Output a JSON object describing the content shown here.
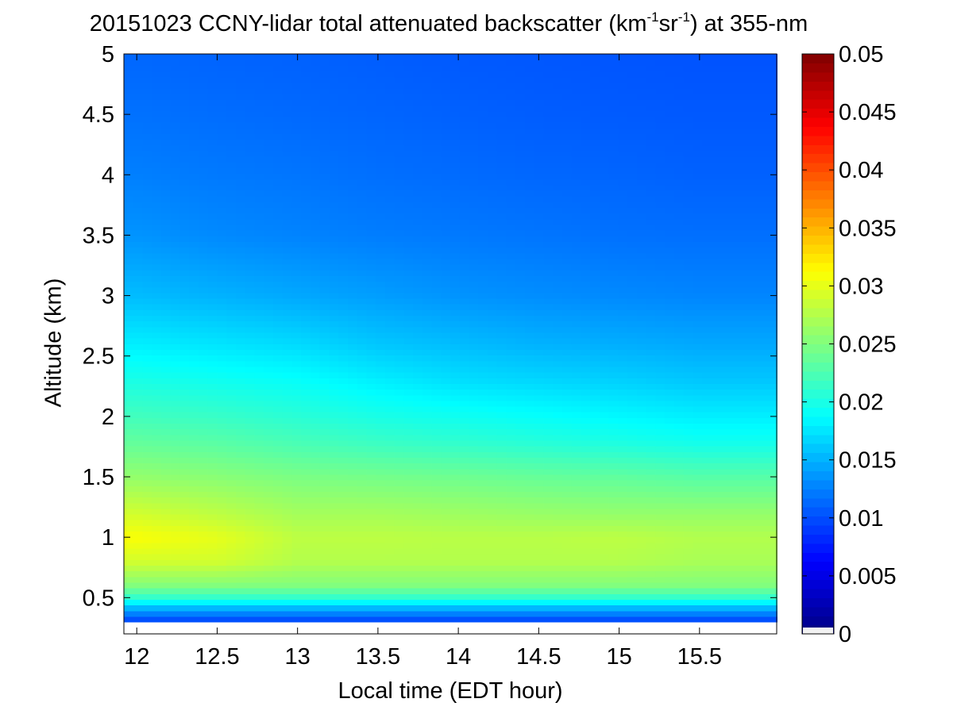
{
  "chart_data": {
    "type": "heatmap",
    "title_prefix": "20151023 CCNY-lidar total attenuated backscatter (km",
    "title_sup1": "-1",
    "title_mid": "sr",
    "title_sup2": "-1",
    "title_suffix": ") at 355-nm",
    "xlabel": "Local time (EDT hour)",
    "ylabel": "Altitude (km)",
    "xlim": [
      11.92,
      15.98
    ],
    "ylim": [
      0.2,
      5.0
    ],
    "x_ticks": [
      12,
      12.5,
      13,
      13.5,
      14,
      14.5,
      15,
      15.5
    ],
    "x_tick_labels": [
      "12",
      "12.5",
      "13",
      "13.5",
      "14",
      "14.5",
      "15",
      "15.5"
    ],
    "y_ticks": [
      0.5,
      1,
      1.5,
      2,
      2.5,
      3,
      3.5,
      4,
      4.5,
      5
    ],
    "y_tick_labels": [
      "0.5",
      "1",
      "1.5",
      "2",
      "2.5",
      "3",
      "3.5",
      "4",
      "4.5",
      "5"
    ],
    "data_bottom_km": 0.3,
    "colormap": "jet",
    "color_range": [
      0,
      0.05
    ],
    "colorbar_ticks": [
      0,
      0.005,
      0.01,
      0.015,
      0.02,
      0.025,
      0.03,
      0.035,
      0.04,
      0.045,
      0.05
    ],
    "colorbar_tick_labels": [
      "0",
      "0.005",
      "0.01",
      "0.015",
      "0.02",
      "0.025",
      "0.03",
      "0.035",
      "0.04",
      "0.045",
      "0.05"
    ],
    "times": [
      12.0,
      12.5,
      13.0,
      13.5,
      14.0,
      14.5,
      15.0,
      15.5,
      15.98
    ],
    "altitudes": [
      0.3,
      0.4,
      0.5,
      0.6,
      0.8,
      1.0,
      1.2,
      1.5,
      1.8,
      2.0,
      2.3,
      2.6,
      3.0,
      3.5,
      4.0,
      4.5,
      5.0
    ],
    "values": [
      [
        0.009,
        0.009,
        0.009,
        0.009,
        0.009,
        0.009,
        0.009,
        0.009,
        0.009
      ],
      [
        0.014,
        0.014,
        0.014,
        0.014,
        0.014,
        0.014,
        0.014,
        0.014,
        0.014
      ],
      [
        0.021,
        0.021,
        0.021,
        0.021,
        0.021,
        0.021,
        0.021,
        0.021,
        0.021
      ],
      [
        0.025,
        0.025,
        0.025,
        0.025,
        0.025,
        0.025,
        0.025,
        0.025,
        0.025
      ],
      [
        0.029,
        0.029,
        0.0275,
        0.0275,
        0.0275,
        0.0275,
        0.0275,
        0.027,
        0.027
      ],
      [
        0.031,
        0.03,
        0.028,
        0.028,
        0.0278,
        0.0278,
        0.028,
        0.0275,
        0.0275
      ],
      [
        0.029,
        0.028,
        0.0268,
        0.0268,
        0.0265,
        0.0262,
        0.026,
        0.026,
        0.026
      ],
      [
        0.026,
        0.0255,
        0.0248,
        0.0245,
        0.0242,
        0.0238,
        0.0235,
        0.023,
        0.023
      ],
      [
        0.0235,
        0.023,
        0.0222,
        0.0215,
        0.021,
        0.0205,
        0.02,
        0.0195,
        0.0195
      ],
      [
        0.022,
        0.0215,
        0.0208,
        0.02,
        0.0195,
        0.019,
        0.0185,
        0.018,
        0.018
      ],
      [
        0.02,
        0.0195,
        0.019,
        0.018,
        0.0172,
        0.0168,
        0.0165,
        0.016,
        0.016
      ],
      [
        0.018,
        0.0175,
        0.017,
        0.016,
        0.0155,
        0.015,
        0.0148,
        0.0145,
        0.0145
      ],
      [
        0.0155,
        0.015,
        0.0145,
        0.014,
        0.0135,
        0.0132,
        0.013,
        0.0128,
        0.0128
      ],
      [
        0.0135,
        0.013,
        0.0127,
        0.0124,
        0.0122,
        0.012,
        0.0118,
        0.0117,
        0.0117
      ],
      [
        0.0125,
        0.0122,
        0.012,
        0.0117,
        0.0115,
        0.0113,
        0.0112,
        0.011,
        0.011
      ],
      [
        0.0118,
        0.0116,
        0.0114,
        0.0112,
        0.011,
        0.0108,
        0.0107,
        0.0106,
        0.0106
      ],
      [
        0.0113,
        0.0111,
        0.011,
        0.0108,
        0.0106,
        0.0105,
        0.0104,
        0.0103,
        0.0103
      ]
    ]
  }
}
